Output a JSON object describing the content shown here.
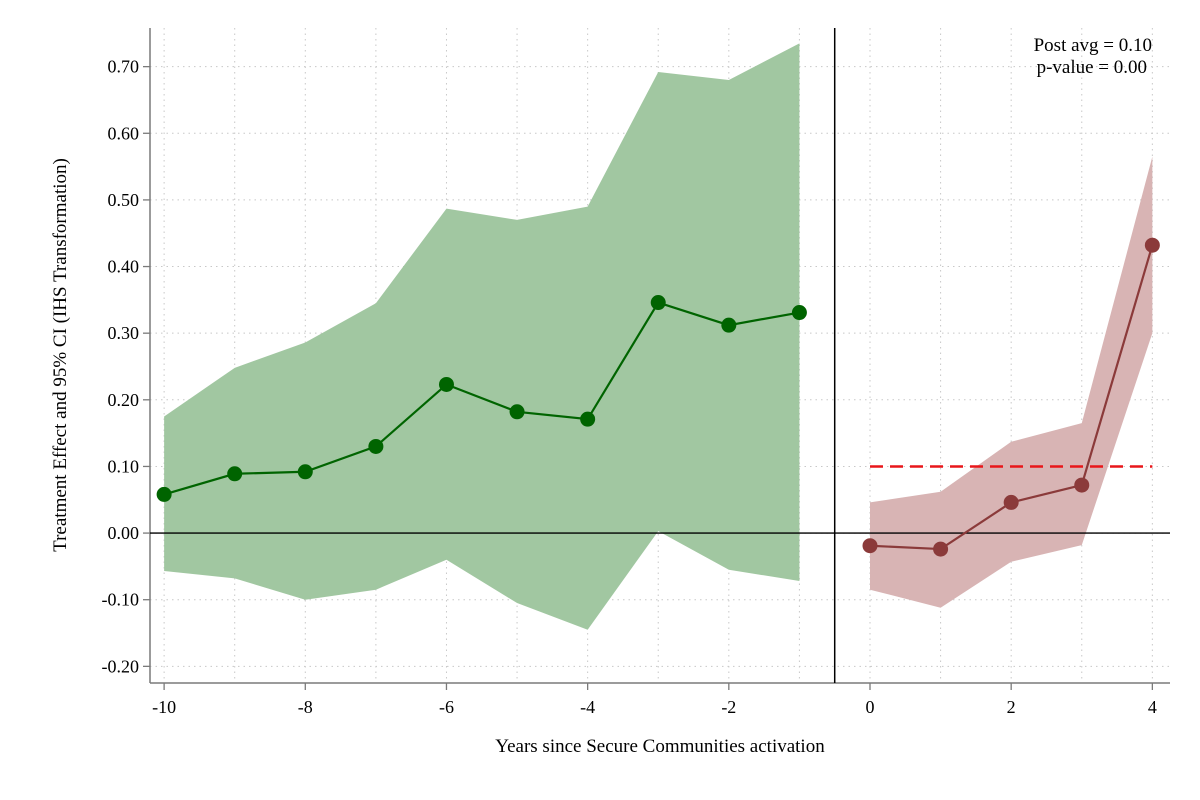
{
  "chart_data": {
    "type": "line",
    "xlabel": "Years since Secure Communities activation",
    "ylabel": "Treatment Effect and 95% CI (IHS Transformation)",
    "xlim": [
      -10.2,
      4.25
    ],
    "ylim": [
      -0.225,
      0.758
    ],
    "x_ticks": [
      -10,
      -8,
      -6,
      -4,
      -2,
      0,
      2,
      4
    ],
    "x_tick_labels": [
      "-10",
      "-8",
      "-6",
      "-4",
      "-2",
      "0",
      "2",
      "4"
    ],
    "x_minor_grid": [
      -9,
      -7,
      -5,
      -3,
      -1,
      1,
      3
    ],
    "y_ticks": [
      -0.2,
      -0.1,
      0.0,
      0.1,
      0.2,
      0.3,
      0.4,
      0.5,
      0.6,
      0.7
    ],
    "y_tick_labels": [
      "-0.20",
      "-0.10",
      "0.00",
      "0.10",
      "0.20",
      "0.30",
      "0.40",
      "0.50",
      "0.60",
      "0.70"
    ],
    "grid": true,
    "zero_line": 0.0,
    "treatment_line_x": -0.5,
    "series": [
      {
        "x": [
          -10,
          -9,
          -8,
          -7,
          -6,
          -5,
          -4,
          -3,
          -2,
          -1
        ],
        "values": [
          0.058,
          0.089,
          0.092,
          0.13,
          0.223,
          0.182,
          0.171,
          0.346,
          0.312,
          0.331
        ],
        "ci_lower": [
          -0.057,
          -0.068,
          -0.1,
          -0.085,
          -0.04,
          -0.105,
          -0.145,
          0.003,
          -0.055,
          -0.072
        ],
        "ci_upper": [
          0.175,
          0.248,
          0.286,
          0.345,
          0.487,
          0.47,
          0.49,
          0.692,
          0.68,
          0.735
        ],
        "line_color": "#006400",
        "band_color": "#a1c7a1"
      },
      {
        "x": [
          0,
          1,
          2,
          3,
          4
        ],
        "values": [
          -0.019,
          -0.024,
          0.046,
          0.072,
          0.432
        ],
        "ci_lower": [
          -0.085,
          -0.112,
          -0.043,
          -0.018,
          0.3
        ],
        "ci_upper": [
          0.046,
          0.062,
          0.137,
          0.165,
          0.565
        ],
        "line_color": "#8b3a3a",
        "band_color": "#d8b4b4"
      }
    ],
    "reference_lines": [
      {
        "y": 0.1,
        "x_range": [
          0,
          4
        ],
        "color": "#e8161a",
        "style": "dashed"
      }
    ],
    "annotations": [
      "Post avg = 0.10",
      "p-value = 0.00"
    ]
  }
}
